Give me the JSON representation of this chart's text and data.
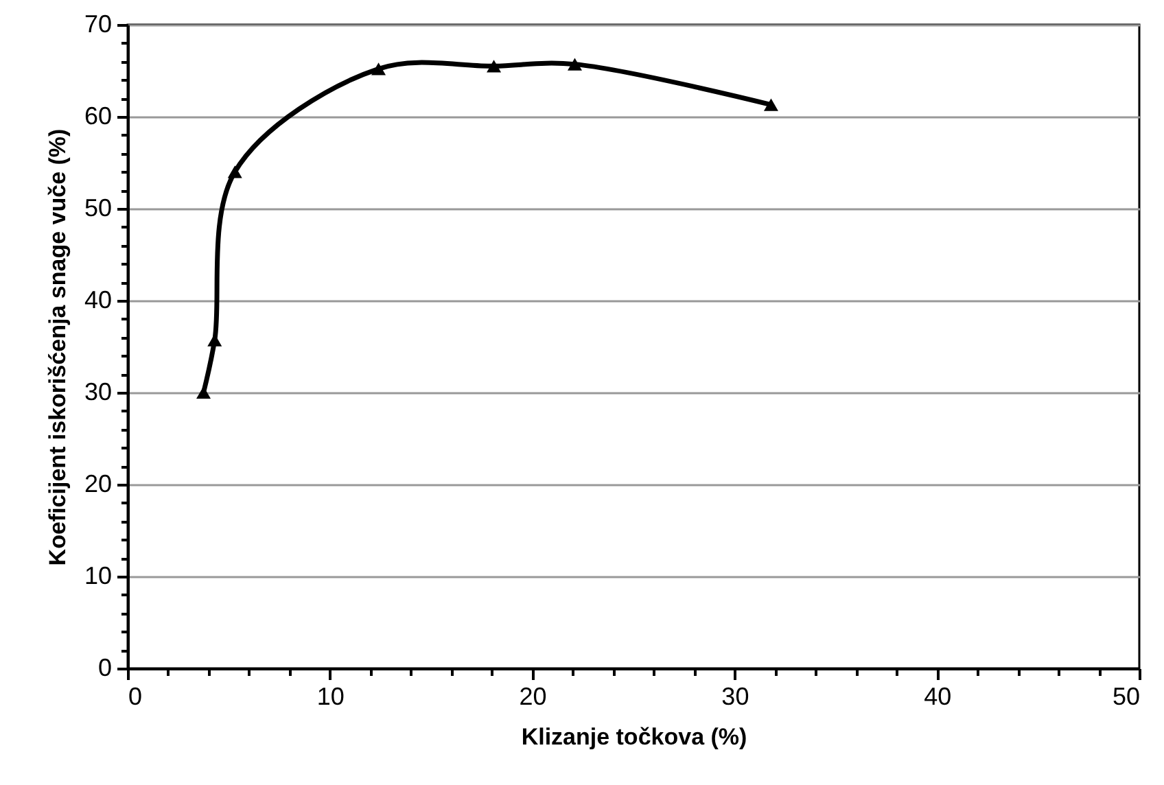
{
  "chart_data": {
    "type": "line",
    "xlabel": "Klizanje točkova (%)",
    "ylabel": "Koeficijent iskorišćenja snage vuče (%)",
    "x": [
      3.75,
      4.3,
      5.3,
      12.4,
      18.1,
      22.1,
      31.8
    ],
    "series": [
      {
        "color": "#000000",
        "values": [
          30.0,
          35.7,
          54.0,
          65.2,
          65.5,
          65.7,
          61.3
        ]
      }
    ],
    "marker": "triangle",
    "line_style": "solid",
    "grid": "y",
    "xlim": [
      0,
      50
    ],
    "ylim": [
      0,
      70
    ],
    "xticks": [
      0,
      {
        "value": 2,
        "label": null
      },
      {
        "value": 4,
        "label": null
      },
      {
        "value": 6,
        "label": null
      },
      {
        "value": 8,
        "label": null
      },
      10,
      {
        "value": 12,
        "label": null
      },
      {
        "value": 14,
        "label": null
      },
      {
        "value": 16,
        "label": null
      },
      {
        "value": 18,
        "label": null
      },
      20,
      {
        "value": 22,
        "label": null
      },
      {
        "value": 24,
        "label": null
      },
      {
        "value": 26,
        "label": null
      },
      {
        "value": 28,
        "label": null
      },
      30,
      {
        "value": 32,
        "label": null
      },
      {
        "value": 34,
        "label": null
      },
      {
        "value": 36,
        "label": null
      },
      {
        "value": 38,
        "label": null
      },
      40,
      {
        "value": 42,
        "label": null
      },
      {
        "value": 44,
        "label": null
      },
      {
        "value": 46,
        "label": null
      },
      {
        "value": 48,
        "label": null
      },
      50
    ],
    "yticks": [
      0,
      {
        "value": 2,
        "label": null
      },
      {
        "value": 4,
        "label": null
      },
      {
        "value": 6,
        "label": null
      },
      {
        "value": 8,
        "label": null
      },
      10,
      {
        "value": 12,
        "label": null
      },
      {
        "value": 14,
        "label": null
      },
      {
        "value": 16,
        "label": null
      },
      {
        "value": 18,
        "label": null
      },
      20,
      {
        "value": 22,
        "label": null
      },
      {
        "value": 24,
        "label": null
      },
      {
        "value": 26,
        "label": null
      },
      {
        "value": 28,
        "label": null
      },
      30,
      {
        "value": 32,
        "label": null
      },
      {
        "value": 34,
        "label": null
      },
      {
        "value": 36,
        "label": null
      },
      {
        "value": 38,
        "label": null
      },
      40,
      {
        "value": 42,
        "label": null
      },
      {
        "value": 44,
        "label": null
      },
      {
        "value": 46,
        "label": null
      },
      {
        "value": 48,
        "label": null
      },
      50,
      {
        "value": 52,
        "label": null
      },
      {
        "value": 54,
        "label": null
      },
      {
        "value": 56,
        "label": null
      },
      {
        "value": 58,
        "label": null
      },
      60,
      {
        "value": 62,
        "label": null
      },
      {
        "value": 64,
        "label": null
      },
      {
        "value": 66,
        "label": null
      },
      {
        "value": 68,
        "label": null
      },
      70
    ]
  }
}
